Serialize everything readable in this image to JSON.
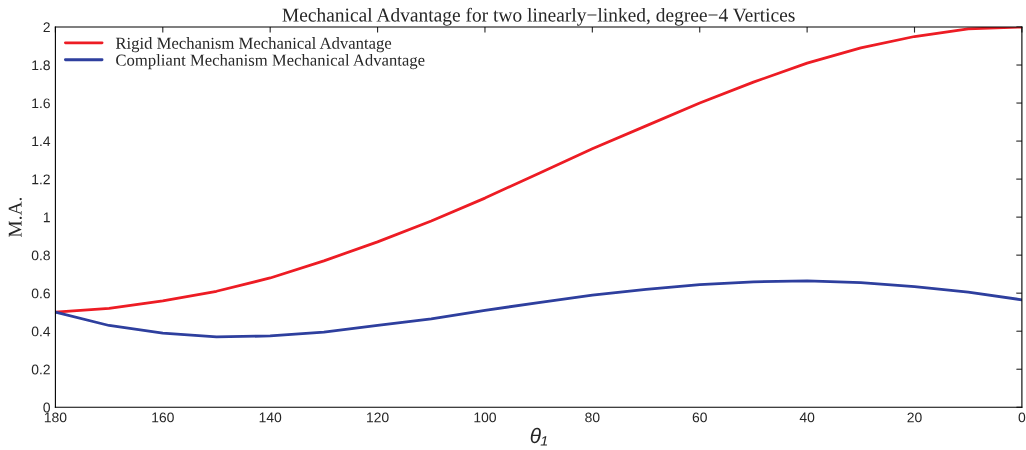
{
  "chart_data": {
    "type": "line",
    "title": "Mechanical Advantage for two linearly−linked, degree−4 Vertices",
    "xlabel": "θ₁",
    "ylabel": "M.A.",
    "x": [
      180,
      170,
      160,
      150,
      140,
      130,
      120,
      110,
      100,
      90,
      80,
      70,
      60,
      50,
      40,
      30,
      20,
      10,
      0
    ],
    "series": [
      {
        "name": "Rigid Mechanism Mechanical Advantage",
        "color": "#ed1c24",
        "values": [
          0.5,
          0.52,
          0.56,
          0.61,
          0.68,
          0.77,
          0.87,
          0.98,
          1.1,
          1.23,
          1.36,
          1.48,
          1.6,
          1.71,
          1.81,
          1.89,
          1.95,
          1.99,
          2.0
        ]
      },
      {
        "name": "Compliant Mechanism Mechanical Advantage",
        "color": "#2e3f9e",
        "values": [
          0.5,
          0.43,
          0.39,
          0.37,
          0.375,
          0.395,
          0.43,
          0.465,
          0.51,
          0.55,
          0.59,
          0.62,
          0.645,
          0.66,
          0.665,
          0.655,
          0.635,
          0.605,
          0.565
        ]
      }
    ],
    "xlim": [
      180,
      0
    ],
    "ylim": [
      0,
      2
    ],
    "xticks": [
      180,
      160,
      140,
      120,
      100,
      80,
      60,
      40,
      20,
      0
    ],
    "yticks": [
      0,
      0.2,
      0.4,
      0.6,
      0.8,
      1,
      1.2,
      1.4,
      1.6,
      1.8,
      2
    ],
    "grid": false,
    "legend": "top left"
  }
}
